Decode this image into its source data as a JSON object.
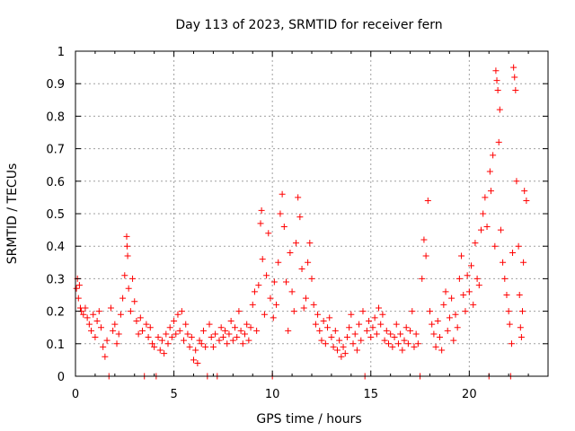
{
  "chart_data": {
    "type": "scatter",
    "title": "Day 113 of 2023, SRMTID for receiver fern",
    "xlabel": "GPS time / hours",
    "ylabel": "SRMTID / TECUs",
    "xlim": [
      0,
      24
    ],
    "ylim": [
      0,
      1
    ],
    "xticks": [
      0,
      5,
      10,
      15,
      20
    ],
    "xtick_labels": [
      "0",
      "5",
      "10",
      "15",
      "20"
    ],
    "yticks": [
      0,
      0.1,
      0.2,
      0.3,
      0.4,
      0.5,
      0.6,
      0.7,
      0.8,
      0.9,
      1
    ],
    "ytick_labels": [
      "0",
      "0.1",
      "0.2",
      "0.3",
      "0.4",
      "0.5",
      "0.6",
      "0.7",
      "0.8",
      "0.9",
      "1"
    ],
    "grid": true,
    "marker": "+",
    "color": "#ff0000",
    "series": [
      {
        "name": "SRMTID",
        "points": [
          [
            0.05,
            0.27
          ],
          [
            0.1,
            0.3
          ],
          [
            0.15,
            0.24
          ],
          [
            0.2,
            0.28
          ],
          [
            0.25,
            0.21
          ],
          [
            0.3,
            0.2
          ],
          [
            0.4,
            0.19
          ],
          [
            0.5,
            0.21
          ],
          [
            0.6,
            0.18
          ],
          [
            0.7,
            0.16
          ],
          [
            0.8,
            0.14
          ],
          [
            0.9,
            0.19
          ],
          [
            1.0,
            0.12
          ],
          [
            1.1,
            0.17
          ],
          [
            1.2,
            0.2
          ],
          [
            1.3,
            0.15
          ],
          [
            1.4,
            0.09
          ],
          [
            1.5,
            0.06
          ],
          [
            1.6,
            0.11
          ],
          [
            1.7,
            0.0
          ],
          [
            1.8,
            0.21
          ],
          [
            1.9,
            0.14
          ],
          [
            2.0,
            0.16
          ],
          [
            2.1,
            0.1
          ],
          [
            2.2,
            0.13
          ],
          [
            2.3,
            0.19
          ],
          [
            2.4,
            0.24
          ],
          [
            2.5,
            0.31
          ],
          [
            2.6,
            0.43
          ],
          [
            2.62,
            0.4
          ],
          [
            2.65,
            0.37
          ],
          [
            2.7,
            0.27
          ],
          [
            2.8,
            0.2
          ],
          [
            2.9,
            0.3
          ],
          [
            3.0,
            0.23
          ],
          [
            3.1,
            0.17
          ],
          [
            3.2,
            0.13
          ],
          [
            3.3,
            0.18
          ],
          [
            3.4,
            0.14
          ],
          [
            3.5,
            0.0
          ],
          [
            3.6,
            0.16
          ],
          [
            3.7,
            0.12
          ],
          [
            3.8,
            0.15
          ],
          [
            3.9,
            0.1
          ],
          [
            4.0,
            0.09
          ],
          [
            4.1,
            0.0
          ],
          [
            4.2,
            0.12
          ],
          [
            4.3,
            0.08
          ],
          [
            4.4,
            0.11
          ],
          [
            4.5,
            0.07
          ],
          [
            4.6,
            0.13
          ],
          [
            4.7,
            0.1
          ],
          [
            4.8,
            0.15
          ],
          [
            4.9,
            0.12
          ],
          [
            5.0,
            0.17
          ],
          [
            5.1,
            0.13
          ],
          [
            5.2,
            0.19
          ],
          [
            5.3,
            0.14
          ],
          [
            5.4,
            0.2
          ],
          [
            5.5,
            0.11
          ],
          [
            5.6,
            0.16
          ],
          [
            5.7,
            0.13
          ],
          [
            5.8,
            0.09
          ],
          [
            5.9,
            0.12
          ],
          [
            6.0,
            0.05
          ],
          [
            6.1,
            0.08
          ],
          [
            6.2,
            0.04
          ],
          [
            6.3,
            0.11
          ],
          [
            6.4,
            0.1
          ],
          [
            6.5,
            0.14
          ],
          [
            6.6,
            0.09
          ],
          [
            6.7,
            0.0
          ],
          [
            6.8,
            0.16
          ],
          [
            6.9,
            0.12
          ],
          [
            7.0,
            0.09
          ],
          [
            7.1,
            0.13
          ],
          [
            7.2,
            0.0
          ],
          [
            7.3,
            0.11
          ],
          [
            7.4,
            0.15
          ],
          [
            7.5,
            0.12
          ],
          [
            7.6,
            0.14
          ],
          [
            7.7,
            0.1
          ],
          [
            7.8,
            0.13
          ],
          [
            7.9,
            0.17
          ],
          [
            8.0,
            0.11
          ],
          [
            8.1,
            0.15
          ],
          [
            8.2,
            0.12
          ],
          [
            8.3,
            0.2
          ],
          [
            8.4,
            0.14
          ],
          [
            8.5,
            0.1
          ],
          [
            8.6,
            0.13
          ],
          [
            8.7,
            0.16
          ],
          [
            8.8,
            0.11
          ],
          [
            8.9,
            0.15
          ],
          [
            9.0,
            0.22
          ],
          [
            9.1,
            0.26
          ],
          [
            9.2,
            0.14
          ],
          [
            9.3,
            0.28
          ],
          [
            9.4,
            0.47
          ],
          [
            9.45,
            0.51
          ],
          [
            9.5,
            0.36
          ],
          [
            9.6,
            0.19
          ],
          [
            9.7,
            0.31
          ],
          [
            9.8,
            0.44
          ],
          [
            9.9,
            0.24
          ],
          [
            10.0,
            0.0
          ],
          [
            10.05,
            0.18
          ],
          [
            10.1,
            0.29
          ],
          [
            10.2,
            0.22
          ],
          [
            10.3,
            0.35
          ],
          [
            10.4,
            0.5
          ],
          [
            10.5,
            0.56
          ],
          [
            10.6,
            0.46
          ],
          [
            10.7,
            0.29
          ],
          [
            10.8,
            0.14
          ],
          [
            10.9,
            0.38
          ],
          [
            11.0,
            0.26
          ],
          [
            11.1,
            0.2
          ],
          [
            11.2,
            0.41
          ],
          [
            11.3,
            0.55
          ],
          [
            11.4,
            0.49
          ],
          [
            11.5,
            0.33
          ],
          [
            11.6,
            0.21
          ],
          [
            11.7,
            0.24
          ],
          [
            11.8,
            0.35
          ],
          [
            11.9,
            0.41
          ],
          [
            12.0,
            0.3
          ],
          [
            12.1,
            0.22
          ],
          [
            12.2,
            0.16
          ],
          [
            12.3,
            0.19
          ],
          [
            12.4,
            0.14
          ],
          [
            12.5,
            0.11
          ],
          [
            12.6,
            0.17
          ],
          [
            12.7,
            0.1
          ],
          [
            12.8,
            0.15
          ],
          [
            12.9,
            0.18
          ],
          [
            13.0,
            0.12
          ],
          [
            13.1,
            0.09
          ],
          [
            13.2,
            0.14
          ],
          [
            13.3,
            0.08
          ],
          [
            13.4,
            0.11
          ],
          [
            13.5,
            0.06
          ],
          [
            13.6,
            0.09
          ],
          [
            13.7,
            0.07
          ],
          [
            13.8,
            0.12
          ],
          [
            13.9,
            0.15
          ],
          [
            14.0,
            0.19
          ],
          [
            14.1,
            0.1
          ],
          [
            14.2,
            0.13
          ],
          [
            14.3,
            0.08
          ],
          [
            14.4,
            0.16
          ],
          [
            14.5,
            0.11
          ],
          [
            14.6,
            0.2
          ],
          [
            14.7,
            0.0
          ],
          [
            14.8,
            0.14
          ],
          [
            14.9,
            0.17
          ],
          [
            15.0,
            0.12
          ],
          [
            15.1,
            0.15
          ],
          [
            15.2,
            0.18
          ],
          [
            15.3,
            0.13
          ],
          [
            15.4,
            0.21
          ],
          [
            15.5,
            0.16
          ],
          [
            15.6,
            0.19
          ],
          [
            15.7,
            0.11
          ],
          [
            15.8,
            0.14
          ],
          [
            15.9,
            0.1
          ],
          [
            16.0,
            0.13
          ],
          [
            16.1,
            0.09
          ],
          [
            16.2,
            0.12
          ],
          [
            16.3,
            0.16
          ],
          [
            16.4,
            0.1
          ],
          [
            16.5,
            0.13
          ],
          [
            16.6,
            0.08
          ],
          [
            16.7,
            0.11
          ],
          [
            16.8,
            0.15
          ],
          [
            16.9,
            0.1
          ],
          [
            17.0,
            0.14
          ],
          [
            17.1,
            0.2
          ],
          [
            17.2,
            0.09
          ],
          [
            17.3,
            0.13
          ],
          [
            17.4,
            0.1
          ],
          [
            17.5,
            0.0
          ],
          [
            17.6,
            0.3
          ],
          [
            17.7,
            0.42
          ],
          [
            17.8,
            0.37
          ],
          [
            17.9,
            0.54
          ],
          [
            18.0,
            0.2
          ],
          [
            18.1,
            0.16
          ],
          [
            18.2,
            0.13
          ],
          [
            18.3,
            0.09
          ],
          [
            18.4,
            0.17
          ],
          [
            18.5,
            0.12
          ],
          [
            18.6,
            0.08
          ],
          [
            18.7,
            0.22
          ],
          [
            18.8,
            0.26
          ],
          [
            18.9,
            0.14
          ],
          [
            19.0,
            0.18
          ],
          [
            19.1,
            0.24
          ],
          [
            19.2,
            0.11
          ],
          [
            19.3,
            0.19
          ],
          [
            19.4,
            0.15
          ],
          [
            19.5,
            0.3
          ],
          [
            19.6,
            0.37
          ],
          [
            19.7,
            0.25
          ],
          [
            19.8,
            0.2
          ],
          [
            19.9,
            0.31
          ],
          [
            20.0,
            0.26
          ],
          [
            20.1,
            0.34
          ],
          [
            20.2,
            0.22
          ],
          [
            20.3,
            0.41
          ],
          [
            20.4,
            0.3
          ],
          [
            20.5,
            0.28
          ],
          [
            20.6,
            0.45
          ],
          [
            20.7,
            0.5
          ],
          [
            20.8,
            0.55
          ],
          [
            20.9,
            0.46
          ],
          [
            21.0,
            0.0
          ],
          [
            21.05,
            0.63
          ],
          [
            21.1,
            0.57
          ],
          [
            21.2,
            0.68
          ],
          [
            21.3,
            0.4
          ],
          [
            21.35,
            0.94
          ],
          [
            21.4,
            0.91
          ],
          [
            21.45,
            0.88
          ],
          [
            21.5,
            0.72
          ],
          [
            21.55,
            0.82
          ],
          [
            21.6,
            0.45
          ],
          [
            21.7,
            0.35
          ],
          [
            21.8,
            0.3
          ],
          [
            21.9,
            0.25
          ],
          [
            22.0,
            0.2
          ],
          [
            22.05,
            0.16
          ],
          [
            22.1,
            0.0
          ],
          [
            22.15,
            0.1
          ],
          [
            22.2,
            0.38
          ],
          [
            22.25,
            0.95
          ],
          [
            22.3,
            0.92
          ],
          [
            22.35,
            0.88
          ],
          [
            22.4,
            0.6
          ],
          [
            22.5,
            0.4
          ],
          [
            22.55,
            0.25
          ],
          [
            22.6,
            0.15
          ],
          [
            22.65,
            0.12
          ],
          [
            22.7,
            0.2
          ],
          [
            22.75,
            0.35
          ],
          [
            22.8,
            0.57
          ],
          [
            22.9,
            0.54
          ]
        ]
      }
    ]
  }
}
